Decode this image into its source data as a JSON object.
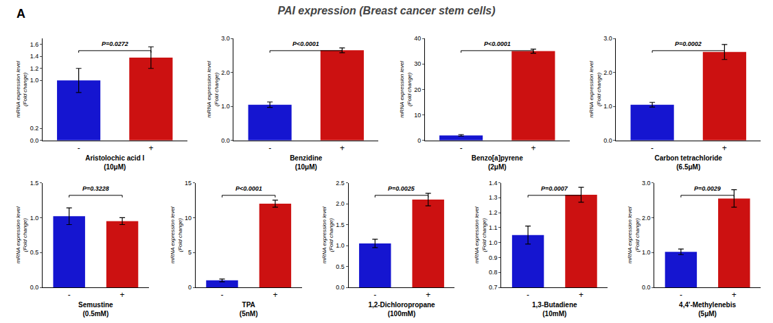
{
  "title": "PAI expression (Breast cancer stem cells)",
  "annotations": [
    "A"
  ],
  "chart_data": [
    {
      "type": "bar",
      "xlabel": "Aristolochic acid I\n(10μM)",
      "ylabel": "mRNA expression level\n(Fold change)",
      "categories": [
        "-",
        "+"
      ],
      "values": [
        1.0,
        1.38
      ],
      "errors": [
        0.2,
        0.18
      ],
      "colors": [
        "#1515d0",
        "#cc1111"
      ],
      "annotations": [
        "P=0.0272"
      ],
      "ylim": [
        0.0,
        1.7
      ],
      "yticks": [
        {
          "value": 0.0,
          "label": "0.0"
        },
        0.2,
        {
          "value": 1.0,
          "label": "1.0"
        },
        1.2,
        1.4,
        1.6
      ],
      "grid": false
    },
    {
      "type": "bar",
      "xlabel": "Benzidine\n(10μM)",
      "ylabel": "mRNA expression level\n(Fold change)",
      "categories": [
        "-",
        "+"
      ],
      "values": [
        1.05,
        2.65
      ],
      "errors": [
        0.08,
        0.07
      ],
      "colors": [
        "#1515d0",
        "#cc1111"
      ],
      "annotations": [
        "P<0.0001"
      ],
      "ylim": [
        0.0,
        3.0
      ],
      "yticks": [
        {
          "value": 0.0,
          "label": "0.0"
        },
        {
          "value": 1.0,
          "label": "1.0"
        },
        {
          "value": 2.0,
          "label": "2.0"
        },
        {
          "value": 3.0,
          "label": "3.0"
        }
      ],
      "grid": false
    },
    {
      "type": "bar",
      "xlabel": "Benzo[a]pyrene\n(2μM)",
      "ylabel": "mRNA expression level\n(Fold change)",
      "categories": [
        "-",
        "+"
      ],
      "values": [
        2.0,
        35.0
      ],
      "errors": [
        0.3,
        0.8
      ],
      "colors": [
        "#1515d0",
        "#cc1111"
      ],
      "annotations": [
        "P<0.0001"
      ],
      "ylim": [
        0,
        40
      ],
      "yticks": [
        0,
        10,
        20,
        30,
        40
      ],
      "grid": false
    },
    {
      "type": "bar",
      "xlabel": "Carbon tetrachloride\n(6.5μM)",
      "ylabel": "mRNA expression level\n(Fold change)",
      "categories": [
        "-",
        "+"
      ],
      "values": [
        1.05,
        2.6
      ],
      "errors": [
        0.07,
        0.22
      ],
      "colors": [
        "#1515d0",
        "#cc1111"
      ],
      "annotations": [
        "P=0.0002"
      ],
      "ylim": [
        0.0,
        3.0
      ],
      "yticks": [
        {
          "value": 0.0,
          "label": "0.0"
        },
        {
          "value": 1.0,
          "label": "1.0"
        },
        {
          "value": 2.0,
          "label": "2.0"
        },
        {
          "value": 3.0,
          "label": "3.0"
        }
      ],
      "grid": false
    },
    {
      "type": "bar",
      "xlabel": "Semustine\n(0.5mM)",
      "ylabel": "mRNA expression level\n(Fold change)",
      "categories": [
        "-",
        "+"
      ],
      "values": [
        1.02,
        0.95
      ],
      "errors": [
        0.12,
        0.05
      ],
      "colors": [
        "#1515d0",
        "#cc1111"
      ],
      "annotations": [
        "P=0.3228"
      ],
      "ylim": [
        0.0,
        1.5
      ],
      "yticks": [
        {
          "value": 0.0,
          "label": "0.0"
        },
        0.5,
        {
          "value": 1.0,
          "label": "1.0"
        },
        1.5
      ],
      "grid": false
    },
    {
      "type": "bar",
      "xlabel": "TPA\n(5nM)",
      "ylabel": "mRNA expression level\n(Fold change)",
      "categories": [
        "-",
        "+"
      ],
      "values": [
        1.0,
        12.0
      ],
      "errors": [
        0.2,
        0.5
      ],
      "colors": [
        "#1515d0",
        "#cc1111"
      ],
      "annotations": [
        "P<0.0001"
      ],
      "ylim": [
        0,
        15
      ],
      "yticks": [
        0,
        5,
        10,
        15
      ],
      "grid": false
    },
    {
      "type": "bar",
      "xlabel": "1,2-Dichloropropane\n(100mM)",
      "ylabel": "mRNA expression level\n(Fold change)",
      "categories": [
        "-",
        "+"
      ],
      "values": [
        1.05,
        2.1
      ],
      "errors": [
        0.1,
        0.15
      ],
      "colors": [
        "#1515d0",
        "#cc1111"
      ],
      "annotations": [
        "P=0.0025"
      ],
      "ylim": [
        0.0,
        2.5
      ],
      "yticks": [
        {
          "value": 0.0,
          "label": "0.0"
        },
        0.5,
        {
          "value": 1.0,
          "label": "1.0"
        },
        1.5,
        {
          "value": 2.0,
          "label": "2.0"
        },
        2.5
      ],
      "grid": false
    },
    {
      "type": "bar",
      "xlabel": "1,3-Butadiene\n(10mM)",
      "ylabel": "mRNA expression level\n(Fold change)",
      "categories": [
        "-",
        "+"
      ],
      "values": [
        1.05,
        1.32
      ],
      "errors": [
        0.06,
        0.05
      ],
      "colors": [
        "#1515d0",
        "#cc1111"
      ],
      "annotations": [
        "P=0.0007"
      ],
      "ylim": [
        0.7,
        1.4
      ],
      "yticks": [
        0.7,
        0.8,
        0.9,
        {
          "value": 1.0,
          "label": "1.0"
        },
        1.1,
        1.2,
        1.3,
        1.4
      ],
      "grid": false
    },
    {
      "type": "bar",
      "xlabel": "4,4'-Methylenebis\n(5μM)",
      "ylabel": "mRNA expression level\n(Fold change)",
      "categories": [
        "-",
        "+"
      ],
      "values": [
        1.02,
        2.55
      ],
      "errors": [
        0.08,
        0.25
      ],
      "colors": [
        "#1515d0",
        "#cc1111"
      ],
      "annotations": [
        "P=0.0029"
      ],
      "ylim": [
        0.0,
        3.0
      ],
      "yticks": [
        {
          "value": 0.0,
          "label": "0.0"
        },
        {
          "value": 1.0,
          "label": "1.0"
        },
        {
          "value": 2.0,
          "label": "2.0"
        },
        {
          "value": 3.0,
          "label": "3.0"
        }
      ],
      "grid": false
    }
  ]
}
